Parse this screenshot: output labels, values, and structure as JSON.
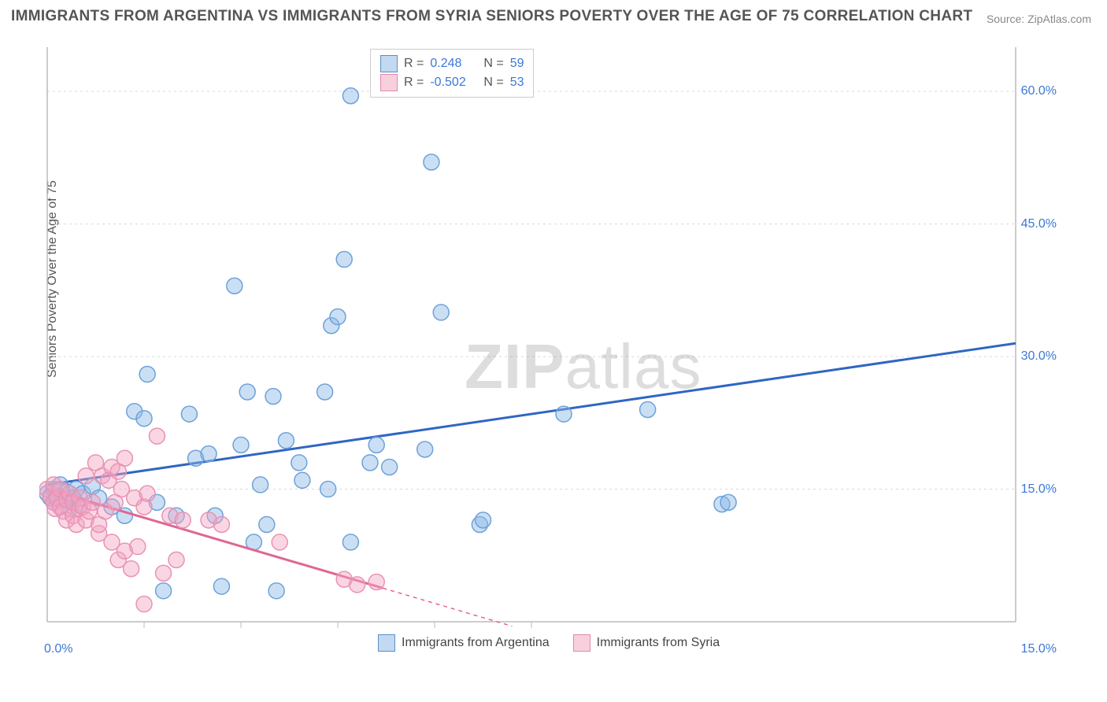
{
  "title": "IMMIGRANTS FROM ARGENTINA VS IMMIGRANTS FROM SYRIA SENIORS POVERTY OVER THE AGE OF 75 CORRELATION CHART",
  "source": "Source: ZipAtlas.com",
  "y_axis_label": "Seniors Poverty Over the Age of 75",
  "watermark_bold": "ZIP",
  "watermark_light": "atlas",
  "stats": {
    "series1": {
      "r_label": "R =",
      "r_value": "0.248",
      "n_label": "N =",
      "n_value": "59"
    },
    "series2": {
      "r_label": "R =",
      "r_value": "-0.502",
      "n_label": "N =",
      "n_value": "53"
    }
  },
  "legend": {
    "series1": "Immigrants from Argentina",
    "series2": "Immigrants from Syria"
  },
  "chart": {
    "type": "scatter",
    "xlim": [
      0,
      15
    ],
    "ylim": [
      0,
      65
    ],
    "x_ticks_major": [
      0,
      15
    ],
    "x_tick_labels": [
      "0.0%",
      "15.0%"
    ],
    "x_ticks_minor": [
      1.5,
      3.0,
      4.5,
      6.0,
      7.5
    ],
    "y_ticks": [
      15,
      30,
      45,
      60
    ],
    "y_tick_labels": [
      "15.0%",
      "30.0%",
      "45.0%",
      "60.0%"
    ],
    "grid_color": "#d9d9d9",
    "axis_color": "#bbbbbb",
    "background": "#ffffff",
    "marker_radius": 10,
    "series": [
      {
        "name": "argentina",
        "fill": "rgba(140,185,230,0.45)",
        "stroke": "#6da2d9",
        "trend": {
          "x1": 0,
          "y1": 15.5,
          "x2": 15,
          "y2": 31.5,
          "color": "#2f66c4",
          "width": 3
        },
        "points": [
          [
            0.0,
            14.5
          ],
          [
            0.05,
            14.0
          ],
          [
            0.1,
            15.0
          ],
          [
            0.1,
            13.5
          ],
          [
            0.15,
            14.2
          ],
          [
            0.2,
            13.0
          ],
          [
            0.2,
            15.5
          ],
          [
            0.25,
            13.8
          ],
          [
            0.3,
            14.7
          ],
          [
            0.35,
            12.8
          ],
          [
            0.4,
            14.0
          ],
          [
            0.45,
            15.0
          ],
          [
            0.5,
            13.2
          ],
          [
            0.55,
            14.5
          ],
          [
            0.7,
            15.3
          ],
          [
            0.8,
            14.0
          ],
          [
            1.0,
            13.0
          ],
          [
            1.2,
            12.0
          ],
          [
            1.35,
            23.8
          ],
          [
            1.5,
            23.0
          ],
          [
            1.55,
            28.0
          ],
          [
            1.7,
            13.5
          ],
          [
            1.8,
            3.5
          ],
          [
            2.0,
            12.0
          ],
          [
            2.2,
            23.5
          ],
          [
            2.3,
            18.5
          ],
          [
            2.5,
            19.0
          ],
          [
            2.6,
            12.0
          ],
          [
            2.7,
            4.0
          ],
          [
            2.9,
            38.0
          ],
          [
            3.0,
            20.0
          ],
          [
            3.1,
            26.0
          ],
          [
            3.2,
            9.0
          ],
          [
            3.3,
            15.5
          ],
          [
            3.4,
            11.0
          ],
          [
            3.5,
            25.5
          ],
          [
            3.55,
            3.5
          ],
          [
            3.7,
            20.5
          ],
          [
            3.9,
            18.0
          ],
          [
            3.95,
            16.0
          ],
          [
            4.3,
            26.0
          ],
          [
            4.35,
            15.0
          ],
          [
            4.4,
            33.5
          ],
          [
            4.5,
            34.5
          ],
          [
            4.6,
            41.0
          ],
          [
            4.7,
            9.0
          ],
          [
            4.7,
            59.5
          ],
          [
            5.0,
            18.0
          ],
          [
            5.1,
            20.0
          ],
          [
            5.3,
            17.5
          ],
          [
            5.85,
            19.5
          ],
          [
            5.95,
            52.0
          ],
          [
            6.1,
            35.0
          ],
          [
            6.7,
            11.0
          ],
          [
            6.75,
            11.5
          ],
          [
            8.0,
            23.5
          ],
          [
            9.3,
            24.0
          ],
          [
            10.45,
            13.3
          ],
          [
            10.55,
            13.5
          ]
        ]
      },
      {
        "name": "syria",
        "fill": "rgba(245,165,195,0.45)",
        "stroke": "#e893b2",
        "trend": {
          "x1": 0,
          "y1": 15.0,
          "x2": 5.2,
          "y2": 3.8,
          "dash_x2": 7.2,
          "dash_y2": -0.5,
          "color": "#e06694",
          "width": 3
        },
        "points": [
          [
            0.0,
            15.0
          ],
          [
            0.05,
            14.2
          ],
          [
            0.1,
            13.5
          ],
          [
            0.1,
            15.5
          ],
          [
            0.12,
            12.8
          ],
          [
            0.15,
            14.0
          ],
          [
            0.2,
            13.0
          ],
          [
            0.2,
            15.0
          ],
          [
            0.25,
            12.5
          ],
          [
            0.3,
            13.8
          ],
          [
            0.3,
            11.5
          ],
          [
            0.35,
            14.5
          ],
          [
            0.4,
            12.0
          ],
          [
            0.4,
            13.5
          ],
          [
            0.45,
            11.0
          ],
          [
            0.5,
            12.8
          ],
          [
            0.5,
            14.0
          ],
          [
            0.55,
            13.0
          ],
          [
            0.6,
            11.5
          ],
          [
            0.6,
            16.5
          ],
          [
            0.65,
            12.5
          ],
          [
            0.7,
            13.5
          ],
          [
            0.75,
            18.0
          ],
          [
            0.8,
            10.0
          ],
          [
            0.8,
            11.0
          ],
          [
            0.85,
            16.5
          ],
          [
            0.9,
            12.5
          ],
          [
            0.95,
            16.0
          ],
          [
            1.0,
            9.0
          ],
          [
            1.0,
            17.5
          ],
          [
            1.05,
            13.5
          ],
          [
            1.1,
            17.0
          ],
          [
            1.1,
            7.0
          ],
          [
            1.15,
            15.0
          ],
          [
            1.2,
            8.0
          ],
          [
            1.2,
            18.5
          ],
          [
            1.3,
            6.0
          ],
          [
            1.35,
            14.0
          ],
          [
            1.4,
            8.5
          ],
          [
            1.5,
            13.0
          ],
          [
            1.5,
            2.0
          ],
          [
            1.55,
            14.5
          ],
          [
            1.7,
            21.0
          ],
          [
            1.8,
            5.5
          ],
          [
            1.9,
            12.0
          ],
          [
            2.0,
            7.0
          ],
          [
            2.1,
            11.5
          ],
          [
            2.5,
            11.5
          ],
          [
            2.7,
            11.0
          ],
          [
            3.6,
            9.0
          ],
          [
            4.6,
            4.8
          ],
          [
            4.8,
            4.2
          ],
          [
            5.1,
            4.5
          ]
        ]
      }
    ]
  }
}
